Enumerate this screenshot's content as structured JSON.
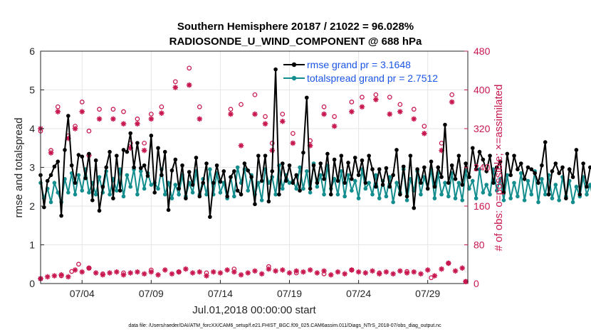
{
  "chart_data": {
    "type": "line",
    "title_line1": "Southern Hemisphere 20187 / 21022 = 96.028%",
    "title_line2": "RADIOSONDE_U_WIND_COMPONENT @ 688 hPa",
    "xlabel": "Jul.01,2018 00:00:00 start",
    "ylabel": "rmse and totalspread",
    "ylabel_right": "# of obs: o=possible; ×=assimilated",
    "xlim": [
      1,
      31.9
    ],
    "ylim": [
      0,
      6
    ],
    "ylim_right": [
      0,
      480
    ],
    "x_ticks": [
      4,
      9,
      14,
      19,
      24,
      29
    ],
    "x_tick_labels": [
      "07/04",
      "07/09",
      "07/14",
      "07/19",
      "07/24",
      "07/29"
    ],
    "y_ticks": [
      0,
      1,
      2,
      3,
      4,
      5,
      6
    ],
    "y_tick_labels": [
      "0",
      "1",
      "2",
      "3",
      "4",
      "5",
      "6"
    ],
    "y_right_ticks": [
      0,
      80,
      160,
      240,
      320,
      400,
      480
    ],
    "y_right_tick_labels": [
      "0",
      "80",
      "160",
      "240",
      "320",
      "400",
      "480"
    ],
    "x_step_days": 0.25,
    "series": [
      {
        "name": "rmse grand pr = 3.1648",
        "color": "#000000",
        "marker": "hexagram",
        "axis": "left",
        "values": [
          2.8,
          1.97,
          2.65,
          2.8,
          3.02,
          3.15,
          1.75,
          3.45,
          4.33,
          3.05,
          2.6,
          3.32,
          3.28,
          2.72,
          3.35,
          2.15,
          3.18,
          1.88,
          2.5,
          3.0,
          3.4,
          2.2,
          3.3,
          2.4,
          3.45,
          3.4,
          3.88,
          3.0,
          3.63,
          2.98,
          3.05,
          2.78,
          3.82,
          2.35,
          3.5,
          2.8,
          3.4,
          1.9,
          2.92,
          3.2,
          2.45,
          3.05,
          2.2,
          2.88,
          2.55,
          3.25,
          2.25,
          2.6,
          3.1,
          1.72,
          2.6,
          3.05,
          2.63,
          2.9,
          2.25,
          2.75,
          2.9,
          2.4,
          2.3,
          3.1,
          2.92,
          2.75,
          2.05,
          3.3,
          2.65,
          3.3,
          2.12,
          2.9,
          5.53,
          2.3,
          3.1,
          2.65,
          3.05,
          2.6,
          2.8,
          2.4,
          3.38,
          4.8,
          2.45,
          3.05,
          2.6,
          3.1,
          2.7,
          3.35,
          2.3,
          3.2,
          2.65,
          3.3,
          2.6,
          3.12,
          2.7,
          3.25,
          2.8,
          3.18,
          2.6,
          3.3,
          2.95,
          2.5,
          2.95,
          2.55,
          2.98,
          2.5,
          2.8,
          3.45,
          2.3,
          3.02,
          2.25,
          3.3,
          1.95,
          2.95,
          2.6,
          3.0,
          2.45,
          3.15,
          2.5,
          3.0,
          2.75,
          4.1,
          2.6,
          3.05,
          2.7,
          3.3,
          2.55,
          3.1,
          2.75,
          3.5,
          2.95,
          3.4,
          3.2,
          2.9,
          3.3,
          2.6,
          3.0,
          3.15,
          2.35,
          3.35,
          2.8,
          3.3,
          2.95,
          3.1,
          2.7,
          3.0,
          2.95,
          2.85,
          2.6,
          3.05,
          3.65,
          2.3,
          2.9,
          3.1,
          2.85,
          3.0,
          2.2,
          2.95,
          2.75,
          3.45,
          2.3,
          3.1,
          2.5,
          3.0,
          3.05,
          3.35,
          3.1,
          2.4,
          3.0,
          2.8,
          3.5,
          2.25
        ]
      },
      {
        "name": "totalspread grand pr = 2.7512",
        "color": "#138d8d",
        "marker": "circle",
        "axis": "left",
        "values": [
          2.6,
          2.2,
          2.45,
          2.1,
          2.6,
          2.35,
          2.1,
          2.7,
          2.35,
          2.85,
          2.3,
          2.8,
          2.4,
          2.95,
          2.35,
          2.6,
          2.3,
          2.75,
          2.35,
          2.9,
          2.3,
          2.7,
          2.4,
          2.95,
          2.25,
          2.8,
          2.5,
          2.95,
          2.3,
          2.9,
          2.45,
          2.85,
          2.55,
          2.6,
          2.45,
          2.95,
          2.3,
          2.6,
          2.2,
          2.55,
          2.3,
          2.8,
          2.25,
          2.6,
          2.35,
          2.9,
          2.3,
          2.7,
          2.3,
          2.95,
          2.3,
          2.85,
          2.35,
          2.6,
          2.2,
          2.75,
          2.25,
          3.0,
          2.6,
          2.95,
          2.4,
          2.8,
          2.3,
          2.6,
          2.15,
          2.95,
          2.6,
          2.75,
          2.3,
          3.05,
          2.45,
          2.8,
          2.6,
          2.65,
          2.45,
          3.0,
          2.45,
          2.9,
          2.35,
          3.1,
          2.5,
          2.8,
          2.3,
          3.05,
          2.45,
          2.7,
          2.3,
          2.9,
          2.25,
          2.8,
          2.4,
          2.65,
          2.2,
          2.95,
          2.45,
          2.6,
          2.3,
          2.8,
          2.2,
          2.65,
          2.25,
          2.75,
          2.1,
          2.6,
          2.35,
          2.95,
          2.15,
          2.7,
          2.4,
          2.9,
          2.3,
          2.75,
          2.45,
          2.95,
          2.2,
          2.85,
          2.3,
          2.6,
          2.25,
          2.85,
          2.2,
          2.6,
          2.15,
          2.9,
          2.45,
          2.65,
          2.2,
          2.95,
          2.35,
          2.55,
          2.3,
          2.95,
          2.4,
          2.7,
          2.15,
          2.8,
          2.2,
          2.6,
          2.25,
          2.85,
          2.15,
          2.65,
          2.3,
          2.9,
          2.1,
          2.7,
          2.3,
          2.8,
          2.2,
          2.55,
          2.15,
          2.75,
          2.25,
          2.65,
          2.1,
          2.5,
          2.25,
          2.75,
          2.3,
          2.55,
          2.15,
          2.6,
          2.2,
          2.75,
          2.1,
          2.2
        ]
      }
    ],
    "obs_possible": [
      {
        "x": 1.0,
        "v": 315
      },
      {
        "x": 1.75,
        "v": 275
      },
      {
        "x": 2.25,
        "v": 365
      },
      {
        "x": 3.0,
        "v": 305
      },
      {
        "x": 3.5,
        "v": 325
      },
      {
        "x": 4.0,
        "v": 375
      },
      {
        "x": 4.5,
        "v": 315
      },
      {
        "x": 5.25,
        "v": 360
      },
      {
        "x": 6.25,
        "v": 360
      },
      {
        "x": 7.0,
        "v": 355
      },
      {
        "x": 7.5,
        "v": 290
      },
      {
        "x": 8.0,
        "v": 340
      },
      {
        "x": 8.5,
        "v": 290
      },
      {
        "x": 9.0,
        "v": 350
      },
      {
        "x": 9.75,
        "v": 365
      },
      {
        "x": 10.75,
        "v": 417
      },
      {
        "x": 11.75,
        "v": 445
      },
      {
        "x": 12.5,
        "v": 365
      },
      {
        "x": 14.75,
        "v": 360
      },
      {
        "x": 15.5,
        "v": 370
      },
      {
        "x": 16.5,
        "v": 390
      },
      {
        "x": 17.25,
        "v": 345
      },
      {
        "x": 17.75,
        "v": 290
      },
      {
        "x": 18.5,
        "v": 350
      },
      {
        "x": 19.25,
        "v": 310
      },
      {
        "x": 20.5,
        "v": 295
      },
      {
        "x": 21.5,
        "v": 365
      },
      {
        "x": 22.25,
        "v": 345
      },
      {
        "x": 23.5,
        "v": 375
      },
      {
        "x": 24.25,
        "v": 385
      },
      {
        "x": 25.25,
        "v": 390
      },
      {
        "x": 26.25,
        "v": 385
      },
      {
        "x": 27.0,
        "v": 370
      },
      {
        "x": 28.0,
        "v": 360
      },
      {
        "x": 28.75,
        "v": 325
      },
      {
        "x": 30.0,
        "v": 290
      },
      {
        "x": 30.75,
        "v": 390
      }
    ],
    "obs_assimilated": [
      {
        "x": 1.0,
        "v": 320
      },
      {
        "x": 1.75,
        "v": 270
      },
      {
        "x": 2.25,
        "v": 355
      },
      {
        "x": 3.0,
        "v": 300
      },
      {
        "x": 3.5,
        "v": 320
      },
      {
        "x": 4.0,
        "v": 355
      },
      {
        "x": 4.5,
        "v": 265
      },
      {
        "x": 5.25,
        "v": 340
      },
      {
        "x": 6.25,
        "v": 340
      },
      {
        "x": 7.0,
        "v": 330
      },
      {
        "x": 7.5,
        "v": 280
      },
      {
        "x": 8.0,
        "v": 330
      },
      {
        "x": 8.5,
        "v": 275
      },
      {
        "x": 9.0,
        "v": 340
      },
      {
        "x": 9.75,
        "v": 352
      },
      {
        "x": 10.75,
        "v": 405
      },
      {
        "x": 11.75,
        "v": 410
      },
      {
        "x": 12.5,
        "v": 340
      },
      {
        "x": 14.75,
        "v": 350
      },
      {
        "x": 15.5,
        "v": 285
      },
      {
        "x": 16.5,
        "v": 350
      },
      {
        "x": 17.25,
        "v": 330
      },
      {
        "x": 17.75,
        "v": 275
      },
      {
        "x": 18.5,
        "v": 335
      },
      {
        "x": 19.25,
        "v": 290
      },
      {
        "x": 20.5,
        "v": 285
      },
      {
        "x": 21.5,
        "v": 350
      },
      {
        "x": 22.25,
        "v": 325
      },
      {
        "x": 23.5,
        "v": 355
      },
      {
        "x": 24.25,
        "v": 365
      },
      {
        "x": 25.25,
        "v": 380
      },
      {
        "x": 26.25,
        "v": 350
      },
      {
        "x": 27.0,
        "v": 355
      },
      {
        "x": 28.0,
        "v": 340
      },
      {
        "x": 28.75,
        "v": 310
      },
      {
        "x": 30.0,
        "v": 275
      },
      {
        "x": 30.75,
        "v": 375
      }
    ],
    "obs_low_possible": [
      {
        "x": 1.0,
        "v": 10
      },
      {
        "x": 2.5,
        "v": 16
      },
      {
        "x": 3.25,
        "v": 25
      },
      {
        "x": 3.75,
        "v": 40
      },
      {
        "x": 4.5,
        "v": 32
      },
      {
        "x": 5.5,
        "v": 20
      },
      {
        "x": 7.0,
        "v": 22
      },
      {
        "x": 9.0,
        "v": 28
      },
      {
        "x": 11.0,
        "v": 24
      },
      {
        "x": 13.0,
        "v": 22
      },
      {
        "x": 15.0,
        "v": 30
      },
      {
        "x": 17.5,
        "v": 35
      },
      {
        "x": 19.5,
        "v": 22
      },
      {
        "x": 21.5,
        "v": 20
      },
      {
        "x": 23.5,
        "v": 28
      },
      {
        "x": 25.5,
        "v": 22
      },
      {
        "x": 27.5,
        "v": 25
      },
      {
        "x": 29.25,
        "v": 12
      },
      {
        "x": 30.5,
        "v": 42
      },
      {
        "x": 31.75,
        "v": 4
      }
    ],
    "obs_low_assimilated": [
      {
        "x": 1.0,
        "v": 10
      },
      {
        "x": 1.5,
        "v": 14
      },
      {
        "x": 2.0,
        "v": 16
      },
      {
        "x": 2.5,
        "v": 18
      },
      {
        "x": 3.0,
        "v": 14
      },
      {
        "x": 3.5,
        "v": 28
      },
      {
        "x": 4.0,
        "v": 24
      },
      {
        "x": 4.5,
        "v": 32
      },
      {
        "x": 5.0,
        "v": 22
      },
      {
        "x": 5.5,
        "v": 18
      },
      {
        "x": 6.0,
        "v": 22
      },
      {
        "x": 6.5,
        "v": 24
      },
      {
        "x": 7.0,
        "v": 18
      },
      {
        "x": 7.5,
        "v": 22
      },
      {
        "x": 8.0,
        "v": 24
      },
      {
        "x": 8.5,
        "v": 20
      },
      {
        "x": 9.0,
        "v": 24
      },
      {
        "x": 9.5,
        "v": 18
      },
      {
        "x": 10.0,
        "v": 28
      },
      {
        "x": 10.5,
        "v": 20
      },
      {
        "x": 11.0,
        "v": 24
      },
      {
        "x": 11.5,
        "v": 30
      },
      {
        "x": 12.0,
        "v": 22
      },
      {
        "x": 12.5,
        "v": 24
      },
      {
        "x": 13.0,
        "v": 16
      },
      {
        "x": 13.5,
        "v": 24
      },
      {
        "x": 14.0,
        "v": 22
      },
      {
        "x": 14.5,
        "v": 28
      },
      {
        "x": 15.0,
        "v": 24
      },
      {
        "x": 15.5,
        "v": 18
      },
      {
        "x": 16.0,
        "v": 22
      },
      {
        "x": 16.5,
        "v": 26
      },
      {
        "x": 17.0,
        "v": 20
      },
      {
        "x": 17.5,
        "v": 30
      },
      {
        "x": 18.0,
        "v": 26
      },
      {
        "x": 18.5,
        "v": 28
      },
      {
        "x": 19.0,
        "v": 22
      },
      {
        "x": 19.5,
        "v": 26
      },
      {
        "x": 20.0,
        "v": 24
      },
      {
        "x": 20.5,
        "v": 28
      },
      {
        "x": 21.0,
        "v": 22
      },
      {
        "x": 21.5,
        "v": 26
      },
      {
        "x": 22.0,
        "v": 18
      },
      {
        "x": 22.5,
        "v": 24
      },
      {
        "x": 23.0,
        "v": 20
      },
      {
        "x": 23.5,
        "v": 28
      },
      {
        "x": 24.0,
        "v": 24
      },
      {
        "x": 24.5,
        "v": 22
      },
      {
        "x": 25.0,
        "v": 26
      },
      {
        "x": 25.5,
        "v": 20
      },
      {
        "x": 26.0,
        "v": 24
      },
      {
        "x": 26.5,
        "v": 20
      },
      {
        "x": 27.0,
        "v": 26
      },
      {
        "x": 27.5,
        "v": 22
      },
      {
        "x": 28.0,
        "v": 24
      },
      {
        "x": 28.5,
        "v": 20
      },
      {
        "x": 29.0,
        "v": 28
      },
      {
        "x": 29.5,
        "v": 16
      },
      {
        "x": 30.0,
        "v": 30
      },
      {
        "x": 30.5,
        "v": 42
      },
      {
        "x": 31.0,
        "v": 26
      },
      {
        "x": 31.5,
        "v": 32
      },
      {
        "x": 31.75,
        "v": 4
      }
    ],
    "obs_color": "#c8174f",
    "legend_position": "top-right"
  },
  "footnote": "data file: /Users/raeder/DAI/ATM_forcXX/CAM6_setup/f.e21.FHIST_BGC.f09_025.CAM6assim.011/Diags_NTrS_2018-07/obs_diag_output.nc"
}
